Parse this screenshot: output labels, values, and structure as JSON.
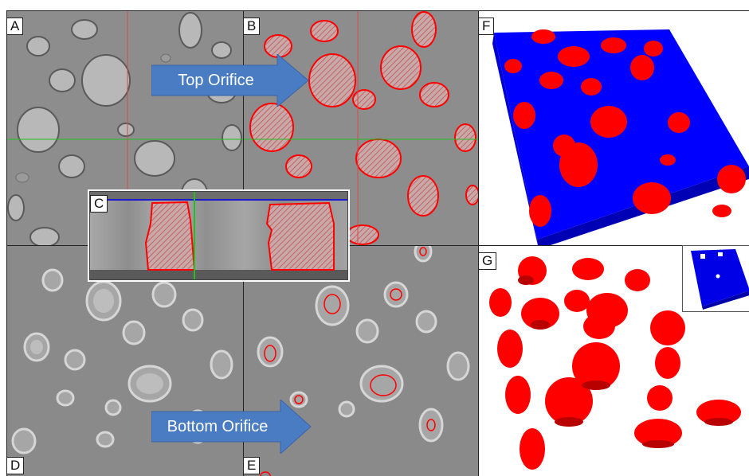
{
  "figure": {
    "panel_labels": {
      "a": "A",
      "b": "B",
      "c": "C",
      "d": "D",
      "e": "E",
      "f": "F",
      "g": "G"
    },
    "arrows": {
      "top": "Top Orifice",
      "bottom": "Bottom Orifice"
    },
    "colors": {
      "ct_background": "#8c8c8c",
      "segmentation": "#ff0000",
      "volume_body": "#0000ff",
      "arrow_fill": "#4a7cc4",
      "crosshair_horizontal": "#22c022",
      "crosshair_vertical": "#d84a4a"
    }
  }
}
